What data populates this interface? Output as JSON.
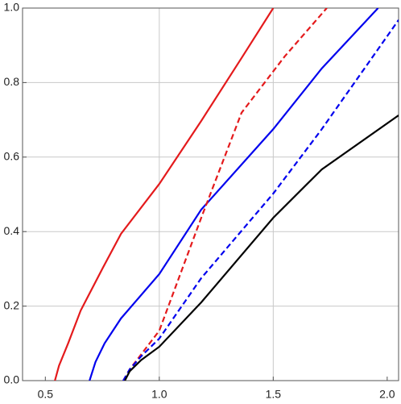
{
  "chart_data": {
    "type": "line",
    "xlim": [
      0.4,
      2.05
    ],
    "ylim": [
      0,
      1
    ],
    "xticks": [
      0.5,
      {
        "value": 1,
        "label": "1.0"
      },
      1.5,
      {
        "value": 2,
        "label": "2.0"
      }
    ],
    "yticks": [
      {
        "value": 0,
        "label": "0.0"
      },
      0.2,
      0.4,
      0.6,
      0.8,
      {
        "value": 1,
        "label": "1.0"
      }
    ],
    "xgrid": [
      1,
      1.5
    ],
    "ygrid": [
      0.2,
      0.4,
      0.6,
      0.8
    ],
    "series": [
      {
        "color": "#e41a1c",
        "dash": false,
        "x": [
          0.542,
          0.56,
          0.6,
          0.655,
          0.75,
          0.832,
          1.0,
          1.184,
          1.361,
          1.5
        ],
        "values": [
          0,
          0.04,
          0.1,
          0.188,
          0.3,
          0.394,
          0.528,
          0.697,
          0.866,
          1.0
        ]
      },
      {
        "color": "#0000ee",
        "dash": false,
        "x": [
          0.694,
          0.72,
          0.76,
          0.832,
          1.0,
          1.184,
          1.5,
          1.713,
          1.96
        ],
        "values": [
          0,
          0.05,
          0.1,
          0.167,
          0.286,
          0.459,
          0.675,
          0.838,
          1.0
        ]
      },
      {
        "color": "#e41a1c",
        "dash": true,
        "x": [
          0.842,
          0.87,
          0.92,
          1.0,
          1.184,
          1.361,
          1.55,
          1.735
        ],
        "values": [
          0,
          0.03,
          0.07,
          0.134,
          0.437,
          0.719,
          0.87,
          1.0
        ]
      },
      {
        "color": "#0000ee",
        "dash": true,
        "x": [
          0.842,
          0.87,
          0.92,
          1.0,
          1.184,
          1.5,
          1.713,
          2.05
        ],
        "values": [
          0,
          0.03,
          0.065,
          0.113,
          0.275,
          0.502,
          0.675,
          0.968
        ]
      },
      {
        "color": "#000000",
        "dash": false,
        "x": [
          0.849,
          0.87,
          0.92,
          1.0,
          1.184,
          1.5,
          1.713,
          2.05
        ],
        "values": [
          0,
          0.025,
          0.055,
          0.091,
          0.21,
          0.437,
          0.567,
          0.712
        ]
      }
    ]
  }
}
